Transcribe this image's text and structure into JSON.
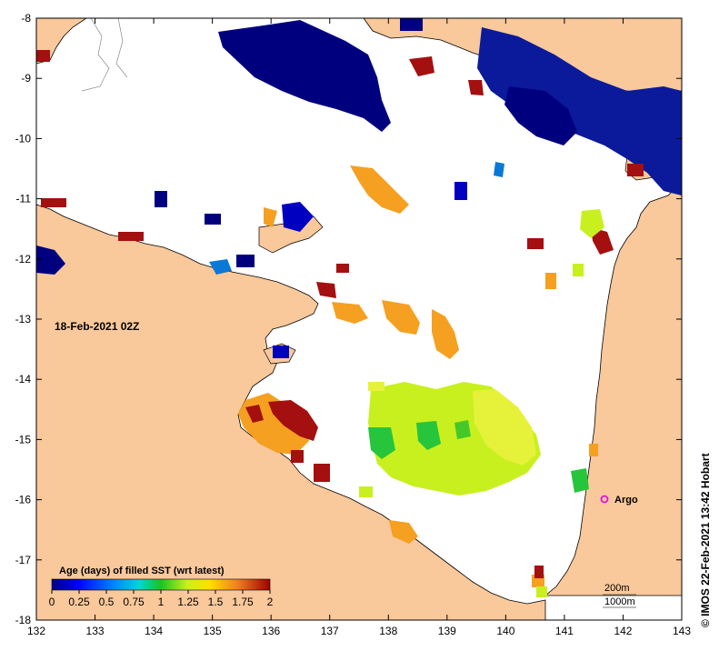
{
  "map": {
    "date_label": "18-Feb-2021 02Z",
    "credit": "© IMOS 22-Feb-2021 13:42 Hobart",
    "lon_ticks": [
      132,
      133,
      134,
      135,
      136,
      137,
      138,
      139,
      140,
      141,
      142,
      143
    ],
    "lat_ticks": [
      -8,
      -9,
      -10,
      -11,
      -12,
      -13,
      -14,
      -15,
      -16,
      -17,
      -18
    ],
    "lon_range": [
      132,
      143
    ],
    "lat_range": [
      -18,
      -8
    ],
    "argo": {
      "label": "Argo",
      "lon": 141.7,
      "lat": -16.0
    },
    "contours": {
      "label_200": "200m",
      "label_1000": "1000m"
    },
    "colorbar": {
      "title": "Age (days) of filled SST (wrt latest)",
      "tick_labels": [
        "0",
        "0.25",
        "0.5",
        "0.75",
        "1",
        "1.25",
        "1.5",
        "1.75",
        "2"
      ]
    },
    "colors": {
      "land": "#f9c89b",
      "sea": "#ffffff",
      "age_0": "#00007f",
      "age_0_5": "#0a78d6",
      "age_1": "#27c53b",
      "age_1_25": "#c8f01f",
      "age_1_5": "#f5a020",
      "age_2": "#a40f0f",
      "argo": "#e010e0"
    }
  }
}
